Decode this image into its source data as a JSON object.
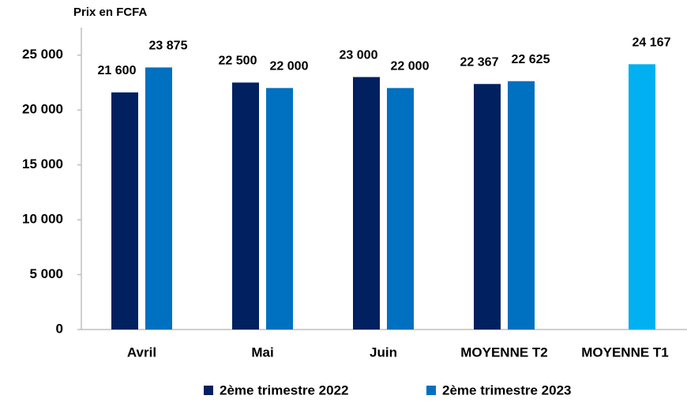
{
  "chart_data": {
    "type": "bar",
    "title": "Prix en FCFA",
    "categories": [
      "Avril",
      "Mai",
      "Juin",
      "MOYENNE T2",
      "MOYENNE T1"
    ],
    "series": [
      {
        "name": "2ème trimestre 2022",
        "color": "#002060",
        "values": [
          21600,
          22500,
          23000,
          22367,
          null
        ],
        "value_labels": [
          "21 600",
          "22 500",
          "23 000",
          "22 367",
          null
        ]
      },
      {
        "name": "2ème trimestre 2023",
        "color": "#0070c0",
        "values": [
          23875,
          22000,
          22000,
          22625,
          null
        ],
        "value_labels": [
          "23 875",
          "22 000",
          "22 000",
          "22 625",
          null
        ]
      },
      {
        "color": "#00b0f0",
        "values": [
          null,
          null,
          null,
          null,
          24167
        ],
        "value_labels": [
          null,
          null,
          null,
          null,
          "24 167"
        ]
      }
    ],
    "ylim": [
      0,
      27500
    ],
    "yticks": [
      0,
      {
        "value": 5000,
        "label": "5 000"
      },
      {
        "value": 10000,
        "label": "10 000"
      },
      {
        "value": 15000,
        "label": "15 000"
      },
      {
        "value": 20000,
        "label": "20 000"
      },
      {
        "value": 25000,
        "label": "25 000"
      }
    ],
    "grid": false,
    "legend": "bottom"
  }
}
